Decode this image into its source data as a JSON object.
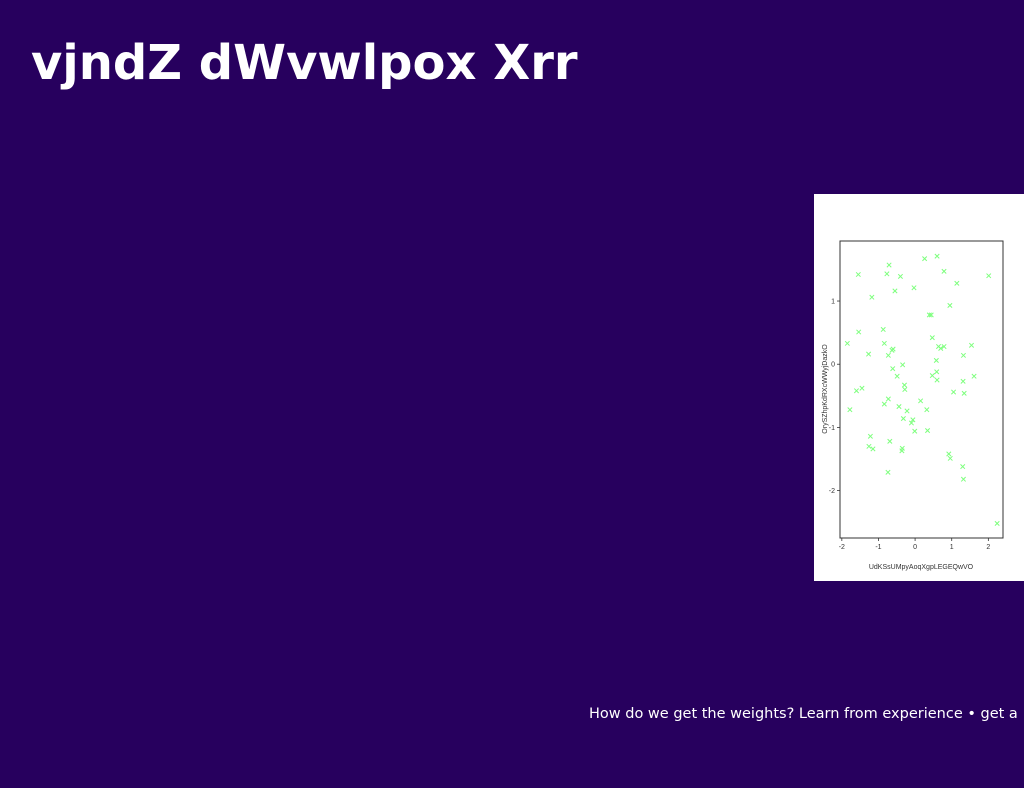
{
  "slide": {
    "title": "vjndZ dWvwlpox Xrr",
    "caption": "How do we get the weights? Learn from experience • get a"
  },
  "chart_data": {
    "type": "scatter",
    "xlabel": "UdKSsUMpyAoqXgpLEGEQwVO",
    "ylabel": "OrySZhpKdRXcWWyjDazkO",
    "xlim": [
      -2.05,
      2.4
    ],
    "ylim": [
      -2.75,
      1.95
    ],
    "xticks": [
      "-2",
      "-1",
      "0",
      "1",
      "2"
    ],
    "xtick_values": [
      -2,
      -1,
      0,
      1,
      2
    ],
    "yticks": [
      "1",
      "0",
      "-1",
      "-2"
    ],
    "ytick_values": [
      1,
      0,
      -1,
      -2
    ],
    "marker": "x",
    "marker_color": "#7dff7d",
    "grid": false,
    "series": [
      {
        "x": [
          -1.55,
          -1.18,
          -0.77,
          -0.71,
          -0.4,
          -0.03,
          0.26,
          0.6,
          0.79,
          2.01,
          1.14,
          0.95,
          0.39,
          -0.55,
          -0.87,
          -1.85,
          -1.45,
          -1.27,
          -1.6,
          -1.54,
          -1.78,
          -0.84,
          -0.63,
          -0.73,
          -0.6,
          -0.61,
          -0.34,
          -0.49,
          -0.29,
          -0.84,
          -0.73,
          -0.28,
          -0.32,
          -0.44,
          -0.22,
          -0.1,
          -0.06,
          0.15,
          -0.36,
          -0.35,
          -0.69,
          -0.74,
          -1.22,
          -1.26,
          -1.15,
          -0.01,
          0.34,
          0.32,
          0.58,
          0.47,
          0.6,
          0.64,
          0.7,
          0.59,
          0.79,
          0.47,
          0.44,
          1.32,
          1.54,
          1.61,
          1.31,
          1.34,
          1.05,
          0.92,
          0.96,
          1.3,
          1.32,
          2.24
        ],
        "y": [
          1.42,
          1.06,
          1.43,
          1.57,
          1.39,
          1.21,
          1.67,
          1.71,
          1.47,
          1.4,
          1.28,
          0.93,
          0.78,
          1.16,
          0.55,
          0.33,
          -0.38,
          0.16,
          -0.42,
          0.51,
          -0.72,
          0.33,
          0.22,
          0.14,
          0.24,
          -0.07,
          -0.01,
          -0.19,
          -0.33,
          -0.63,
          -0.55,
          -0.4,
          -0.86,
          -0.67,
          -0.74,
          -0.93,
          -0.88,
          -0.58,
          -1.37,
          -1.33,
          -1.22,
          -1.71,
          -1.14,
          -1.3,
          -1.34,
          -1.06,
          -1.05,
          -0.72,
          0.06,
          -0.18,
          -0.25,
          0.28,
          0.25,
          -0.12,
          0.28,
          0.42,
          0.78,
          0.14,
          0.3,
          -0.19,
          -0.27,
          -0.46,
          -0.44,
          -1.42,
          -1.49,
          -1.62,
          -1.82,
          -2.52
        ]
      }
    ]
  }
}
